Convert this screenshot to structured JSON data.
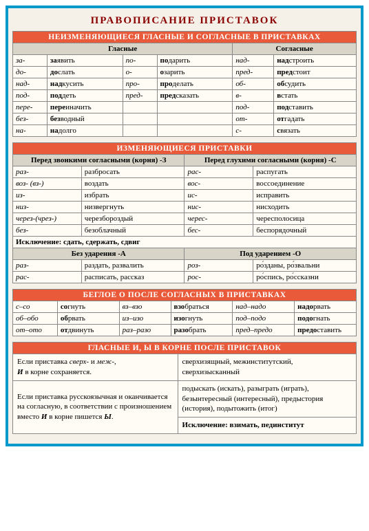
{
  "colors": {
    "border": "#0099cc",
    "sectionBg": "#e85a3a",
    "sectionFg": "#ffffff",
    "groupBg": "#d8d4c8",
    "pageBg": "#f5f0e8",
    "tableBg": "#fefcf5",
    "titleColor": "#8b0000"
  },
  "mainTitle": "ПРАВОПИСАНИЕ ПРИСТАВОК",
  "section1": {
    "title": "НЕИЗМЕНЯЮЩИЕСЯ ГЛАСНЫЕ И СОГЛАСНЫЕ В ПРИСТАВКАХ",
    "headers": {
      "vowels": "Гласные",
      "consonants": "Согласные"
    },
    "rows": [
      {
        "p1": "за-",
        "e1": "заявить",
        "p2": "по-",
        "e2": "подарить",
        "p3": "над-",
        "e3": "надстроить"
      },
      {
        "p1": "до-",
        "e1": "дослать",
        "p2": "о-",
        "e2": "озарить",
        "p3": "пред-",
        "e3": "предстоит"
      },
      {
        "p1": "над-",
        "e1": "надкусить",
        "p2": "про-",
        "e2": "проделать",
        "p3": "об-",
        "e3": "обсудить"
      },
      {
        "p1": "под-",
        "e1": "поддеть",
        "p2": "пред-",
        "e2": "предсказать",
        "p3": "в-",
        "e3": "встать"
      },
      {
        "p1": "пере-",
        "e1": "переиначить",
        "p2": "",
        "e2": "",
        "p3": "под-",
        "e3": "подставить"
      },
      {
        "p1": "без-",
        "e1": "безводный",
        "p2": "",
        "e2": "",
        "p3": "от-",
        "e3": "отгадать"
      },
      {
        "p1": "на-",
        "e1": "надолго",
        "p2": "",
        "e2": "",
        "p3": "с-",
        "e3": "связать"
      }
    ]
  },
  "section2": {
    "title": "ИЗМЕНЯЮЩИЕСЯ ПРИСТАВКИ",
    "headers": {
      "voiced": "Перед звонкими согласными (корня) -З",
      "voiceless": "Перед глухими согласными (корня) -С"
    },
    "rows": [
      {
        "p1": "раз-",
        "e1": "разбросать",
        "p2": "рас-",
        "e2": "распугать"
      },
      {
        "p1": "воз- (вз-)",
        "e1": "воздать",
        "p2": "вос-",
        "e2": "воссоединение"
      },
      {
        "p1": "из-",
        "e1": "избрать",
        "p2": "ис-",
        "e2": "исправить"
      },
      {
        "p1": "низ-",
        "e1": "низвергнуть",
        "p2": "нис-",
        "e2": "нисходить"
      },
      {
        "p1": "через-(чрез-)",
        "e1": "черезбороздый",
        "p2": "черес-",
        "e2": "чересполосица"
      },
      {
        "p1": "без-",
        "e1": "безоблачный",
        "p2": "бес-",
        "e2": "беспорядочный"
      }
    ],
    "exception": "Исключение: сдать, сдержать, сдвиг",
    "sub": {
      "headers": {
        "unstressed": "Без ударения -А",
        "stressed": "Под ударением -О"
      },
      "rows": [
        {
          "p1": "раз-",
          "e1": "раздать, развалить",
          "p2": "роз-",
          "e2": "ро́зданы, ро́звальни"
        },
        {
          "p1": "рас-",
          "e1": "расписать, рассказ",
          "p2": "рос-",
          "e2": "ро́спись, ро́ссказни"
        }
      ]
    }
  },
  "section3": {
    "title": "БЕГЛОЕ О ПОСЛЕ СОГЛАСНЫХ В ПРИСТАВКАХ",
    "rows": [
      {
        "p1": "с–со",
        "e1": "согнуть",
        "p2": "вз–взо",
        "e2": "взобраться",
        "p3": "над–надо",
        "e3": "надорвать"
      },
      {
        "p1": "об–обо",
        "e1": "оборвать",
        "p2": "из–изо",
        "e2": "изогнуть",
        "p3": "под–подо",
        "e3": "подогнать"
      },
      {
        "p1": "от–ото",
        "e1": "отодвинуть",
        "p2": "раз–разо",
        "e2": "разобрать",
        "p3": "пред–предо",
        "e3": "предоставить"
      }
    ]
  },
  "section4": {
    "title": "ГЛАСНЫЕ И, Ы В КОРНЕ ПОСЛЕ ПРИСТАВОК",
    "rows": [
      {
        "rule": "Если приставка сверх- и меж-, И в корне сохраняется.",
        "examples": "сверхизящный, межинститутский, сверхизысканный"
      },
      {
        "rule": "Если приставка русскоязычная и оканчивается на согласную, в соответствии с произношением вместо И в корне пишется Ы.",
        "examples": "подыскать (искать), разыграть (играть), безынтересный (интересный), предыстория (история), подытожить (итог)"
      }
    ],
    "exception": "Исключение: взимать, пединститут"
  }
}
